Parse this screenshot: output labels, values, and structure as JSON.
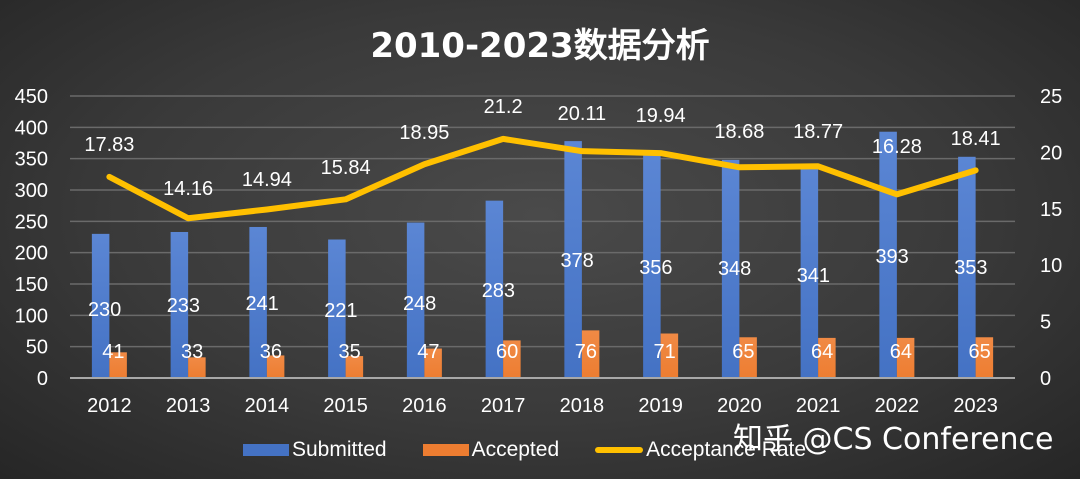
{
  "title": "2010-2023数据分析",
  "watermark": "知乎 @CS Conference",
  "colors": {
    "submitted": "#4472C4",
    "accepted": "#ED7D31",
    "rate": "#FFC000"
  },
  "legend": [
    {
      "label": "Submitted",
      "icon": "bar-swatch"
    },
    {
      "label": "Accepted",
      "icon": "bar-swatch"
    },
    {
      "label": "Acceptance Rate",
      "icon": "line-swatch"
    }
  ],
  "chart_data": {
    "type": "bar",
    "title": "2010-2023数据分析",
    "categories": [
      "2012",
      "2013",
      "2014",
      "2015",
      "2016",
      "2017",
      "2018",
      "2019",
      "2020",
      "2021",
      "2022",
      "2023"
    ],
    "series": [
      {
        "name": "Submitted",
        "type": "bar",
        "axis": "left",
        "values": [
          230,
          233,
          241,
          221,
          248,
          283,
          378,
          356,
          348,
          341,
          393,
          353
        ]
      },
      {
        "name": "Accepted",
        "type": "bar",
        "axis": "left",
        "values": [
          41,
          33,
          36,
          35,
          47,
          60,
          76,
          71,
          65,
          64,
          64,
          65
        ]
      },
      {
        "name": "Acceptance Rate",
        "type": "line",
        "axis": "right",
        "values": [
          17.83,
          14.16,
          14.94,
          15.84,
          18.95,
          21.2,
          20.11,
          19.94,
          18.68,
          18.77,
          16.28,
          18.41
        ]
      }
    ],
    "left_axis": {
      "ylim": [
        0,
        450
      ],
      "ticks": [
        0,
        50,
        100,
        150,
        200,
        250,
        300,
        350,
        400,
        450
      ]
    },
    "right_axis": {
      "ylim": [
        0,
        25
      ],
      "ticks": [
        0,
        5,
        10,
        15,
        20,
        25
      ]
    },
    "xlabel": "",
    "ylabel": "",
    "grid": true,
    "legend_position": "bottom"
  }
}
